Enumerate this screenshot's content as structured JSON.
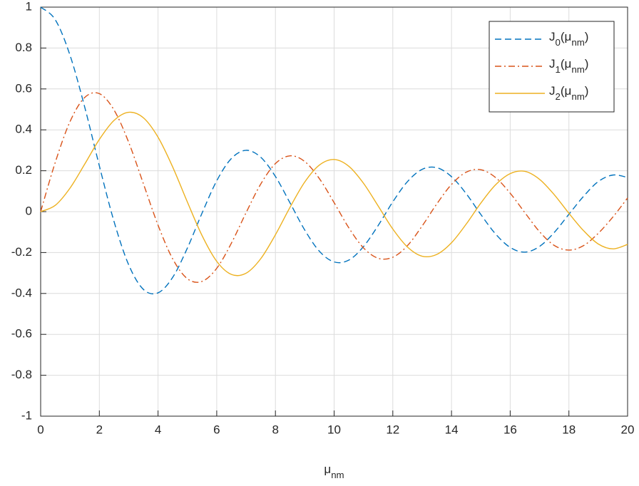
{
  "chart_data": {
    "type": "line",
    "xlabel": "μnm",
    "x": [
      0,
      0.5,
      1,
      1.5,
      2,
      2.5,
      3,
      3.5,
      4,
      4.5,
      5,
      5.5,
      6,
      6.5,
      7,
      7.5,
      8,
      8.5,
      9,
      9.5,
      10,
      10.5,
      11,
      11.5,
      12,
      12.5,
      13,
      13.5,
      14,
      14.5,
      15,
      15.5,
      16,
      16.5,
      17,
      17.5,
      18,
      18.5,
      19,
      19.5,
      20
    ],
    "series": [
      {
        "name": "J0(μnm)",
        "color": "#0072BD",
        "style": "dashed",
        "values": [
          1,
          0.938,
          0.765,
          0.512,
          0.224,
          -0.048,
          -0.26,
          -0.38,
          -0.397,
          -0.321,
          -0.178,
          -0.007,
          0.151,
          0.26,
          0.3,
          0.266,
          0.172,
          0.042,
          -0.09,
          -0.194,
          -0.246,
          -0.237,
          -0.171,
          -0.068,
          0.048,
          0.147,
          0.207,
          0.215,
          0.171,
          0.088,
          -0.014,
          -0.109,
          -0.175,
          -0.198,
          -0.17,
          -0.102,
          -0.013,
          0.075,
          0.147,
          0.179,
          0.167
        ]
      },
      {
        "name": "J1(μnm)",
        "color": "#D95319",
        "style": "dashdot",
        "values": [
          0,
          0.242,
          0.44,
          0.558,
          0.577,
          0.497,
          0.339,
          0.137,
          -0.066,
          -0.231,
          -0.328,
          -0.341,
          -0.277,
          -0.154,
          -0.005,
          0.135,
          0.235,
          0.273,
          0.245,
          0.161,
          0.044,
          -0.079,
          -0.177,
          -0.228,
          -0.223,
          -0.166,
          -0.07,
          0.038,
          0.133,
          0.193,
          0.205,
          0.167,
          0.09,
          -0.005,
          -0.098,
          -0.165,
          -0.188,
          -0.166,
          -0.106,
          -0.026,
          0.067
        ]
      },
      {
        "name": "J2(μnm)",
        "color": "#EDB120",
        "style": "solid",
        "values": [
          0,
          0.031,
          0.115,
          0.232,
          0.353,
          0.446,
          0.486,
          0.459,
          0.364,
          0.218,
          0.047,
          -0.117,
          -0.243,
          -0.307,
          -0.301,
          -0.23,
          -0.113,
          0.022,
          0.145,
          0.228,
          0.255,
          0.222,
          0.139,
          0.028,
          -0.085,
          -0.173,
          -0.218,
          -0.209,
          -0.152,
          -0.061,
          0.042,
          0.131,
          0.186,
          0.197,
          0.158,
          0.083,
          -0.008,
          -0.093,
          -0.158,
          -0.182,
          -0.16
        ]
      }
    ],
    "xlim": [
      0,
      20
    ],
    "xticks": [
      0,
      2,
      4,
      6,
      8,
      10,
      12,
      14,
      16,
      18,
      20
    ],
    "ylim": [
      -1,
      1
    ],
    "yticks": [
      -1,
      -0.8,
      -0.6,
      -0.4,
      -0.2,
      0,
      0.2,
      0.4,
      0.6,
      0.8,
      1
    ],
    "grid": true,
    "legend": "northeast"
  }
}
